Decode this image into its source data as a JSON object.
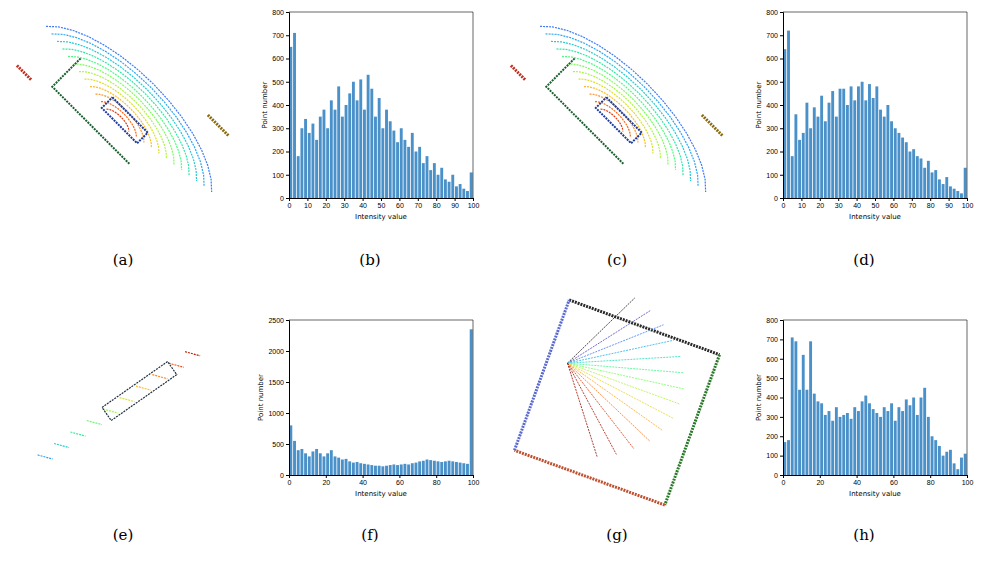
{
  "chart_data": [
    {
      "type": "histogram",
      "label": "(b)",
      "x_label": "Intensity value",
      "y_label": "Point number",
      "bins": [
        0,
        2,
        4,
        6,
        8,
        10,
        12,
        14,
        16,
        18,
        20,
        22,
        24,
        26,
        28,
        30,
        32,
        34,
        36,
        38,
        40,
        42,
        44,
        46,
        48,
        50,
        52,
        54,
        56,
        58,
        60,
        62,
        64,
        66,
        68,
        70,
        72,
        74,
        76,
        78,
        80,
        82,
        84,
        86,
        88,
        90,
        92,
        94,
        96,
        98,
        100
      ],
      "values": [
        650,
        710,
        180,
        300,
        340,
        280,
        320,
        250,
        350,
        380,
        300,
        420,
        380,
        480,
        350,
        400,
        450,
        500,
        420,
        510,
        380,
        530,
        470,
        350,
        430,
        300,
        380,
        330,
        290,
        240,
        300,
        250,
        220,
        280,
        200,
        220,
        150,
        180,
        120,
        150,
        100,
        130,
        80,
        70,
        100,
        50,
        60,
        40,
        30,
        110
      ],
      "color": "#4a90c9",
      "xlim": [
        0,
        100
      ],
      "xticks": [
        0,
        10,
        20,
        30,
        40,
        50,
        60,
        70,
        80,
        90,
        100
      ],
      "ylim": [
        0,
        800
      ],
      "yticks": [
        0,
        100,
        200,
        300,
        400,
        500,
        600,
        700,
        800
      ],
      "grid": false
    },
    {
      "type": "histogram",
      "label": "(d)",
      "x_label": "Intensity value",
      "y_label": "Point number",
      "bins": [
        0,
        2,
        4,
        6,
        8,
        10,
        12,
        14,
        16,
        18,
        20,
        22,
        24,
        26,
        28,
        30,
        32,
        34,
        36,
        38,
        40,
        42,
        44,
        46,
        48,
        50,
        52,
        54,
        56,
        58,
        60,
        62,
        64,
        66,
        68,
        70,
        72,
        74,
        76,
        78,
        80,
        82,
        84,
        86,
        88,
        90,
        92,
        94,
        96,
        98,
        100
      ],
      "values": [
        640,
        720,
        180,
        360,
        250,
        280,
        410,
        300,
        390,
        350,
        440,
        330,
        410,
        460,
        350,
        470,
        470,
        400,
        480,
        420,
        480,
        500,
        420,
        490,
        430,
        480,
        380,
        350,
        400,
        330,
        300,
        280,
        260,
        240,
        200,
        210,
        180,
        170,
        130,
        160,
        110,
        120,
        80,
        60,
        90,
        50,
        40,
        30,
        20,
        130
      ],
      "color": "#4a90c9",
      "xlim": [
        0,
        100
      ],
      "xticks": [
        0,
        10,
        20,
        30,
        40,
        50,
        60,
        70,
        80,
        90,
        100
      ],
      "ylim": [
        0,
        800
      ],
      "yticks": [
        0,
        100,
        200,
        300,
        400,
        500,
        600,
        700,
        800
      ],
      "grid": false
    },
    {
      "type": "histogram",
      "label": "(f)",
      "x_label": "Intensity value",
      "y_label": "Point number",
      "bins": [
        0,
        2,
        4,
        6,
        8,
        10,
        12,
        14,
        16,
        18,
        20,
        22,
        24,
        26,
        28,
        30,
        32,
        34,
        36,
        38,
        40,
        42,
        44,
        46,
        48,
        50,
        52,
        54,
        56,
        58,
        60,
        62,
        64,
        66,
        68,
        70,
        72,
        74,
        76,
        78,
        80,
        82,
        84,
        86,
        88,
        90,
        92,
        94,
        96,
        98,
        100
      ],
      "values": [
        800,
        550,
        400,
        420,
        350,
        300,
        380,
        420,
        350,
        300,
        350,
        400,
        300,
        280,
        250,
        260,
        220,
        200,
        210,
        190,
        180,
        170,
        160,
        150,
        150,
        140,
        150,
        160,
        170,
        160,
        170,
        180,
        170,
        190,
        200,
        220,
        230,
        250,
        240,
        230,
        220,
        210,
        220,
        230,
        220,
        210,
        200,
        190,
        180,
        2350
      ],
      "color": "#4a90c9",
      "xlim": [
        0,
        100
      ],
      "xticks": [
        0,
        20,
        40,
        60,
        80,
        100
      ],
      "ylim": [
        0,
        2500
      ],
      "yticks": [
        0,
        500,
        1000,
        1500,
        2000,
        2500
      ],
      "grid": false
    },
    {
      "type": "histogram",
      "label": "(h)",
      "x_label": "Intensity value",
      "y_label": "Point number",
      "bins": [
        0,
        2,
        4,
        6,
        8,
        10,
        12,
        14,
        16,
        18,
        20,
        22,
        24,
        26,
        28,
        30,
        32,
        34,
        36,
        38,
        40,
        42,
        44,
        46,
        48,
        50,
        52,
        54,
        56,
        58,
        60,
        62,
        64,
        66,
        68,
        70,
        72,
        74,
        76,
        78,
        80,
        82,
        84,
        86,
        88,
        90,
        92,
        94,
        96,
        98,
        100
      ],
      "values": [
        170,
        180,
        710,
        690,
        440,
        620,
        440,
        690,
        420,
        380,
        370,
        310,
        330,
        280,
        350,
        300,
        310,
        320,
        290,
        350,
        330,
        380,
        410,
        370,
        340,
        320,
        300,
        350,
        330,
        370,
        280,
        350,
        330,
        390,
        360,
        400,
        310,
        400,
        450,
        300,
        200,
        180,
        150,
        100,
        120,
        130,
        60,
        30,
        90,
        110
      ],
      "color": "#4a90c9",
      "xlim": [
        0,
        100
      ],
      "xticks": [
        0,
        20,
        40,
        60,
        80,
        100
      ],
      "ylim": [
        0,
        800
      ],
      "yticks": [
        0,
        100,
        200,
        300,
        400,
        500,
        600,
        700,
        800
      ],
      "grid": false
    }
  ],
  "images": [
    {
      "label": "(a)"
    },
    {
      "label": "(c)"
    },
    {
      "label": "(e)"
    },
    {
      "label": "(g)"
    }
  ]
}
